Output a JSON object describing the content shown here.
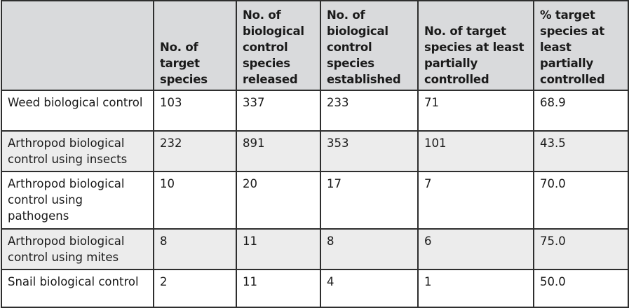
{
  "headers": [
    "",
    "No. of target species",
    "No. of biological control species released",
    "No. of biological control species established",
    "No. of target species at least partially controlled",
    "% target species at least partially controlled"
  ],
  "rows": [
    [
      "Weed biological control",
      "103",
      "337",
      "233",
      "71",
      "68.9"
    ],
    [
      "Arthropod biological control using insects",
      "232",
      "891",
      "353",
      "101",
      "43.5"
    ],
    [
      "Arthropod biological control using pathogens",
      "10",
      "20",
      "17",
      "7",
      "70.0"
    ],
    [
      "Arthropod biological control using mites",
      "8",
      "11",
      "8",
      "6",
      "75.0"
    ],
    [
      "Snail biological control",
      "2",
      "11",
      "4",
      "1",
      "50.0"
    ]
  ]
}
